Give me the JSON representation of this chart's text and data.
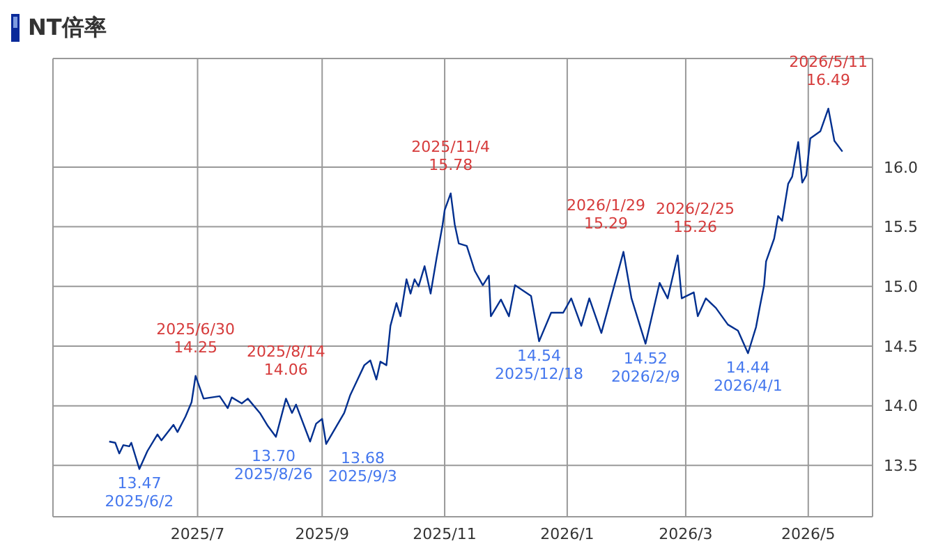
{
  "chart_data": {
    "type": "line",
    "title": "NT倍率",
    "x": [
      "2025-05-18",
      "2025-05-21",
      "2025-05-23",
      "2025-05-25",
      "2025-05-28",
      "2025-05-29",
      "2025-06-02",
      "2025-06-06",
      "2025-06-11",
      "2025-06-13",
      "2025-06-19",
      "2025-06-21",
      "2025-06-25",
      "2025-06-28",
      "2025-06-30",
      "2025-07-04",
      "2025-07-12",
      "2025-07-16",
      "2025-07-18",
      "2025-07-23",
      "2025-07-26",
      "2025-08-01",
      "2025-08-05",
      "2025-08-09",
      "2025-08-14",
      "2025-08-17",
      "2025-08-19",
      "2025-08-26",
      "2025-08-29",
      "2025-09-01",
      "2025-09-03",
      "2025-09-12",
      "2025-09-15",
      "2025-09-22",
      "2025-09-25",
      "2025-09-28",
      "2025-09-30",
      "2025-10-03",
      "2025-10-05",
      "2025-10-08",
      "2025-10-10",
      "2025-10-13",
      "2025-10-15",
      "2025-10-17",
      "2025-10-19",
      "2025-10-22",
      "2025-10-25",
      "2025-10-28",
      "2025-10-31",
      "2025-11-01",
      "2025-11-04",
      "2025-11-06",
      "2025-11-08",
      "2025-11-12",
      "2025-11-16",
      "2025-11-20",
      "2025-11-23",
      "2025-11-24",
      "2025-11-29",
      "2025-12-03",
      "2025-12-06",
      "2025-12-14",
      "2025-12-18",
      "2025-12-24",
      "2025-12-30",
      "2026-01-03",
      "2026-01-08",
      "2026-01-12",
      "2026-01-18",
      "2026-01-29",
      "2026-02-02",
      "2026-02-09",
      "2026-02-16",
      "2026-02-20",
      "2026-02-25",
      "2026-02-27",
      "2026-03-05",
      "2026-03-07",
      "2026-03-11",
      "2026-03-16",
      "2026-03-22",
      "2026-03-27",
      "2026-04-01",
      "2026-04-05",
      "2026-04-07",
      "2026-04-09",
      "2026-04-10",
      "2026-04-14",
      "2026-04-16",
      "2026-04-18",
      "2026-04-21",
      "2026-04-23",
      "2026-04-26",
      "2026-04-28",
      "2026-04-30",
      "2026-05-02",
      "2026-05-07",
      "2026-05-11",
      "2026-05-14",
      "2026-05-18"
    ],
    "series": [
      {
        "color": "#002f8f",
        "values": [
          13.7,
          13.69,
          13.6,
          13.67,
          13.66,
          13.69,
          13.47,
          13.62,
          13.76,
          13.71,
          13.84,
          13.78,
          13.91,
          14.03,
          14.25,
          14.06,
          14.08,
          13.98,
          14.07,
          14.02,
          14.06,
          13.94,
          13.83,
          13.74,
          14.06,
          13.94,
          14.01,
          13.7,
          13.85,
          13.89,
          13.68,
          13.94,
          14.09,
          14.34,
          14.38,
          14.22,
          14.37,
          14.34,
          14.67,
          14.86,
          14.75,
          15.06,
          14.94,
          15.06,
          15.0,
          15.17,
          14.94,
          15.24,
          15.52,
          15.64,
          15.78,
          15.52,
          15.36,
          15.34,
          15.13,
          15.01,
          15.09,
          14.75,
          14.89,
          14.75,
          15.01,
          14.92,
          14.54,
          14.78,
          14.78,
          14.9,
          14.67,
          14.9,
          14.61,
          15.29,
          14.9,
          14.52,
          15.03,
          14.9,
          15.26,
          14.9,
          14.95,
          14.75,
          14.9,
          14.82,
          14.68,
          14.63,
          14.44,
          14.66,
          14.84,
          15.01,
          15.21,
          15.4,
          15.59,
          15.55,
          15.86,
          15.92,
          16.21,
          15.87,
          15.93,
          16.24,
          16.3,
          16.49,
          16.22,
          16.13
        ]
      }
    ],
    "xlim": [
      "2025-04-20",
      "2026-06-02"
    ],
    "xticks": [
      {
        "value": "2025-07-01",
        "label": "2025/7"
      },
      {
        "value": "2025-09-01",
        "label": "2025/9"
      },
      {
        "value": "2025-11-01",
        "label": "2025/11"
      },
      {
        "value": "2026-01-01",
        "label": "2026/1"
      },
      {
        "value": "2026-03-01",
        "label": "2026/3"
      },
      {
        "value": "2026-05-01",
        "label": "2026/5"
      }
    ],
    "ylim": [
      13.07,
      16.91
    ],
    "yticks": [
      {
        "value": 13.5,
        "label": "13.5"
      },
      {
        "value": 14,
        "label": "14.0"
      },
      {
        "value": 14.5,
        "label": "14.5"
      },
      {
        "value": 15,
        "label": "15.0"
      },
      {
        "value": 15.5,
        "label": "15.5"
      },
      {
        "value": 16,
        "label": "16.0"
      }
    ],
    "grid": true,
    "marker": "none",
    "line_style": "solid",
    "annotations": [
      {
        "text": "13.47\n2025/6/2",
        "x": "2025-06-02",
        "y": 13.47
      },
      {
        "text": "2025/6/30\n14.25",
        "x": "2025-06-30",
        "y": 14.25
      },
      {
        "text": "2025/8/14\n14.06",
        "x": "2025-08-14",
        "y": 14.06
      },
      {
        "text": "13.70\n2025/8/26",
        "x": "2025-08-26",
        "y": 13.7
      },
      {
        "text": "13.68\n2025/9/3",
        "x": "2025-09-03",
        "y": 13.68
      },
      {
        "text": "2025/11/4\n15.78",
        "x": "2025-11-04",
        "y": 15.78
      },
      {
        "text": "14.54\n2025/12/18",
        "x": "2025-12-18",
        "y": 14.54
      },
      {
        "text": "2026/1/29\n15.29",
        "x": "2026-01-29",
        "y": 15.29
      },
      {
        "text": "14.52\n2026/2/9",
        "x": "2026-02-09",
        "y": 14.52
      },
      {
        "text": "2026/2/25\n15.26",
        "x": "2026-02-25",
        "y": 15.26
      },
      {
        "text": "14.44\n2026/4/1",
        "x": "2026-04-01",
        "y": 14.44
      },
      {
        "text": "2026/5/11\n16.49",
        "x": "2026-05-11",
        "y": 16.49
      }
    ]
  }
}
